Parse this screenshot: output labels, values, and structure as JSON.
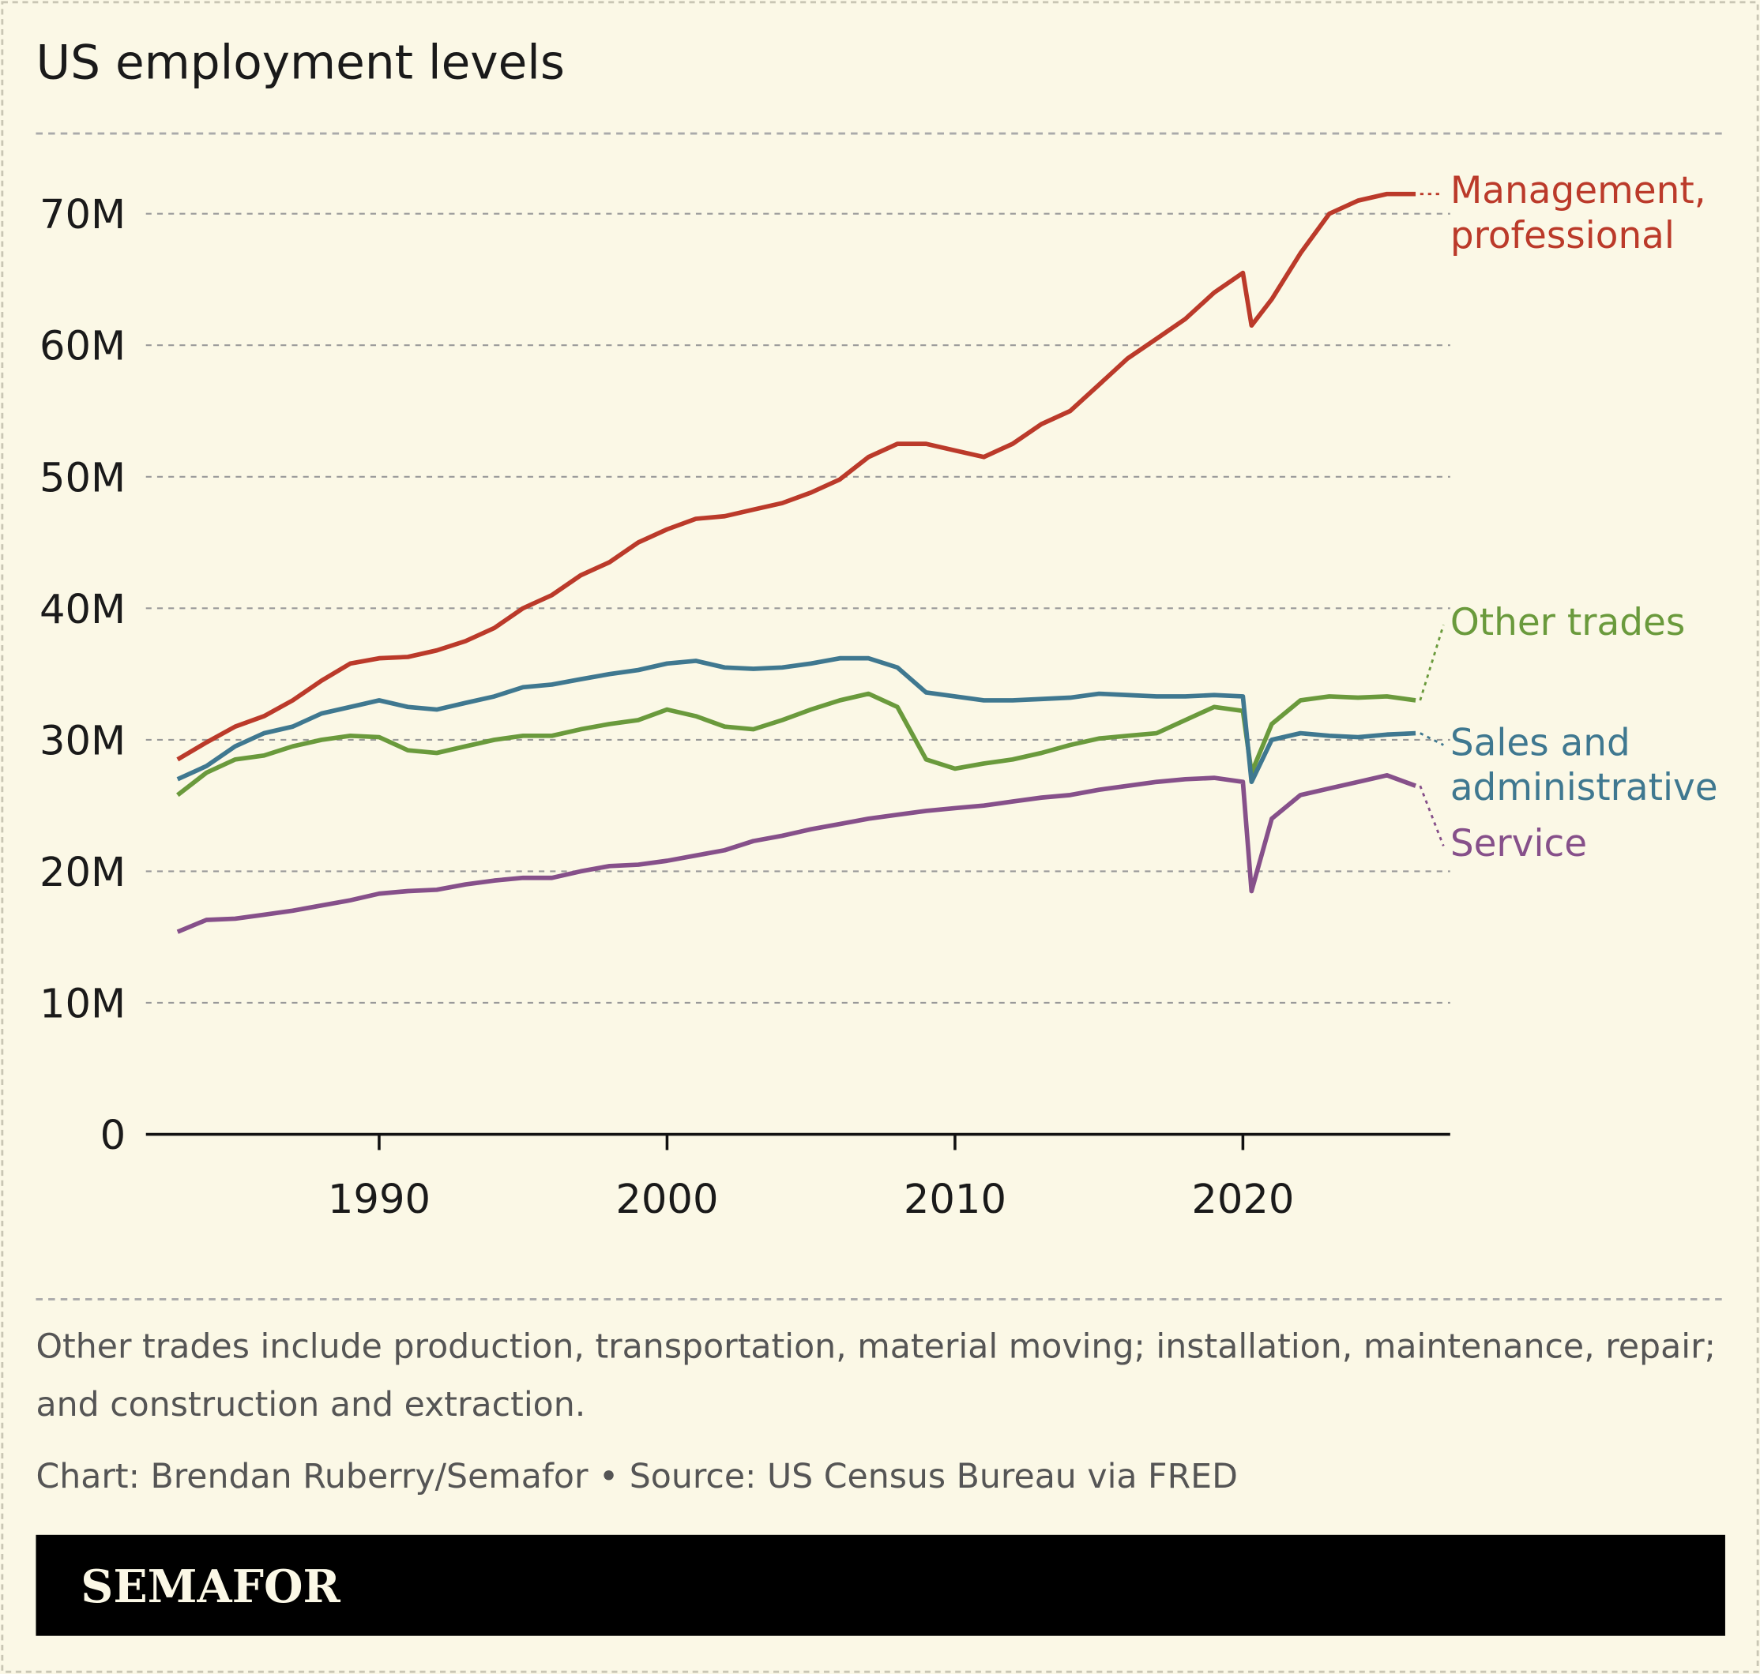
{
  "chart_data": {
    "type": "line",
    "title": "US employment levels",
    "note": "Other trades include production, transportation, material moving; installation, maintenance, repair; and construction and extraction.",
    "source": "Chart: Brendan Ruberry/Semafor • Source: US Census Bureau via FRED",
    "brand": "SEMAFOR",
    "x": [
      1983,
      1984,
      1985,
      1986,
      1987,
      1988,
      1989,
      1990,
      1991,
      1992,
      1993,
      1994,
      1995,
      1996,
      1997,
      1998,
      1999,
      2000,
      2001,
      2002,
      2003,
      2004,
      2005,
      2006,
      2007,
      2008,
      2009,
      2010,
      2011,
      2012,
      2013,
      2014,
      2015,
      2016,
      2017,
      2018,
      2019,
      2020,
      2020.3,
      2021,
      2022,
      2023,
      2024,
      2025,
      2026
    ],
    "series": [
      {
        "name": "Management, professional",
        "color": "#bb3a2a",
        "values": [
          28.5,
          29.8,
          31,
          31.8,
          33,
          34.5,
          35.8,
          36.2,
          36.3,
          36.8,
          37.5,
          38.5,
          40,
          41,
          42.5,
          43.5,
          45,
          46,
          46.8,
          47,
          47.5,
          48,
          48.8,
          49.8,
          51.5,
          52.5,
          52.5,
          52,
          51.5,
          52.5,
          54,
          55,
          57,
          59,
          60.5,
          62,
          64,
          65.5,
          61.5,
          63.5,
          67,
          70,
          71,
          71.5,
          71.5
        ]
      },
      {
        "name": "Other trades",
        "color": "#6a9a3c",
        "values": [
          25.8,
          27.5,
          28.5,
          28.8,
          29.5,
          30,
          30.3,
          30.2,
          29.2,
          29,
          29.5,
          30,
          30.3,
          30.3,
          30.8,
          31.2,
          31.5,
          32.3,
          31.8,
          31,
          30.8,
          31.5,
          32.3,
          33,
          33.5,
          32.5,
          28.5,
          27.8,
          28.2,
          28.5,
          29,
          29.6,
          30.1,
          30.3,
          30.5,
          31.5,
          32.5,
          32.2,
          27.5,
          31.2,
          33,
          33.3,
          33.2,
          33.3,
          33
        ]
      },
      {
        "name": "Sales and administrative",
        "color": "#3f7890",
        "values": [
          27,
          28,
          29.5,
          30.5,
          31,
          32,
          32.5,
          33,
          32.5,
          32.3,
          32.8,
          33.3,
          34,
          34.2,
          34.6,
          35,
          35.3,
          35.8,
          36,
          35.5,
          35.4,
          35.5,
          35.8,
          36.2,
          36.2,
          35.5,
          33.6,
          33.3,
          33,
          33,
          33.1,
          33.2,
          33.5,
          33.4,
          33.3,
          33.3,
          33.4,
          33.3,
          26.8,
          30,
          30.5,
          30.3,
          30.2,
          30.4,
          30.5
        ]
      },
      {
        "name": "Service",
        "color": "#86508a",
        "values": [
          15.4,
          16.3,
          16.4,
          16.7,
          17,
          17.4,
          17.8,
          18.3,
          18.5,
          18.6,
          19,
          19.3,
          19.5,
          19.5,
          20,
          20.4,
          20.5,
          20.8,
          21.2,
          21.6,
          22.3,
          22.7,
          23.2,
          23.6,
          24,
          24.3,
          24.6,
          24.8,
          25,
          25.3,
          25.6,
          25.8,
          26.2,
          26.5,
          26.8,
          27,
          27.1,
          26.8,
          18.5,
          24,
          25.8,
          26.3,
          26.8,
          27.3,
          26.5
        ]
      }
    ],
    "xlim": [
      1981.9,
      2027.2
    ],
    "xticks": [
      1990,
      2000,
      2010,
      2020
    ],
    "ylim": [
      0,
      76.1
    ],
    "yticks": [
      0,
      {
        "value": 10,
        "label": "10M"
      },
      {
        "value": 20,
        "label": "20M"
      },
      {
        "value": 30,
        "label": "30M"
      },
      {
        "value": 40,
        "label": "40M"
      },
      {
        "value": 50,
        "label": "50M"
      },
      {
        "value": 60,
        "label": "60M"
      },
      {
        "value": 70,
        "label": "70M"
      }
    ],
    "grid": true
  }
}
